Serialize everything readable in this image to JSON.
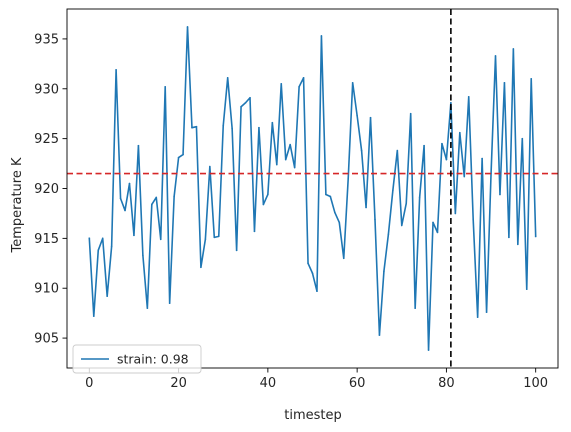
{
  "chart_data": {
    "type": "line",
    "title": "",
    "xlabel": "timestep",
    "ylabel": "Temperature K",
    "xlim": [
      -5,
      105
    ],
    "ylim": [
      902,
      938
    ],
    "xticks": [
      0,
      20,
      40,
      60,
      80,
      100
    ],
    "yticks": [
      905,
      910,
      915,
      920,
      925,
      930,
      935
    ],
    "grid": false,
    "legend_position": "lower-left",
    "series": [
      {
        "name": "strain: 0.98",
        "color": "#1f77b4",
        "x": [
          0,
          1,
          2,
          3,
          4,
          5,
          6,
          7,
          8,
          9,
          10,
          11,
          12,
          13,
          14,
          15,
          16,
          17,
          18,
          19,
          20,
          21,
          22,
          23,
          24,
          25,
          26,
          27,
          28,
          29,
          30,
          31,
          32,
          33,
          34,
          35,
          36,
          37,
          38,
          39,
          40,
          41,
          42,
          43,
          44,
          45,
          46,
          47,
          48,
          49,
          50,
          51,
          52,
          53,
          54,
          55,
          56,
          57,
          58,
          59,
          60,
          61,
          62,
          63,
          64,
          65,
          66,
          67,
          68,
          69,
          70,
          71,
          72,
          73,
          74,
          75,
          76,
          77,
          78,
          79,
          80,
          81,
          82,
          83,
          84,
          85,
          86,
          87,
          88,
          89,
          90,
          91,
          92,
          93,
          94,
          95,
          96,
          97,
          98,
          99,
          100
        ],
        "y": [
          915.0,
          907.2,
          913.8,
          915.0,
          909.2,
          914.2,
          931.9,
          919.0,
          917.8,
          920.5,
          915.3,
          924.3,
          913.3,
          908.0,
          918.4,
          919.1,
          914.9,
          930.2,
          908.5,
          919.2,
          923.1,
          923.4,
          936.2,
          926.1,
          926.2,
          912.1,
          914.9,
          922.2,
          915.1,
          915.2,
          926.3,
          931.1,
          926.0,
          913.8,
          928.2,
          928.6,
          929.1,
          915.7,
          926.1,
          918.4,
          919.4,
          926.6,
          922.4,
          930.5,
          922.9,
          924.4,
          922.1,
          930.2,
          931.1,
          912.5,
          911.5,
          909.7,
          935.3,
          919.4,
          919.2,
          917.6,
          916.6,
          913.0,
          921.0,
          930.6,
          927.3,
          923.8,
          918.1,
          927.1,
          916.9,
          905.3,
          911.7,
          915.4,
          919.8,
          923.8,
          916.3,
          918.5,
          927.5,
          908.0,
          919.1,
          924.3,
          903.8,
          916.6,
          915.6,
          924.5,
          922.9,
          928.6,
          917.5,
          925.6,
          921.2,
          929.2,
          916.9,
          907.1,
          923.0,
          907.6,
          921.5,
          933.3,
          919.4,
          930.6,
          915.1,
          934.0,
          914.4,
          925.0,
          909.9,
          931.0,
          915.2
        ]
      }
    ],
    "reference_lines": [
      {
        "orientation": "horizontal",
        "value": 921.5,
        "color": "#d62728",
        "style": "dashed"
      },
      {
        "orientation": "vertical",
        "value": 81,
        "color": "#000000",
        "style": "dashed"
      }
    ]
  }
}
